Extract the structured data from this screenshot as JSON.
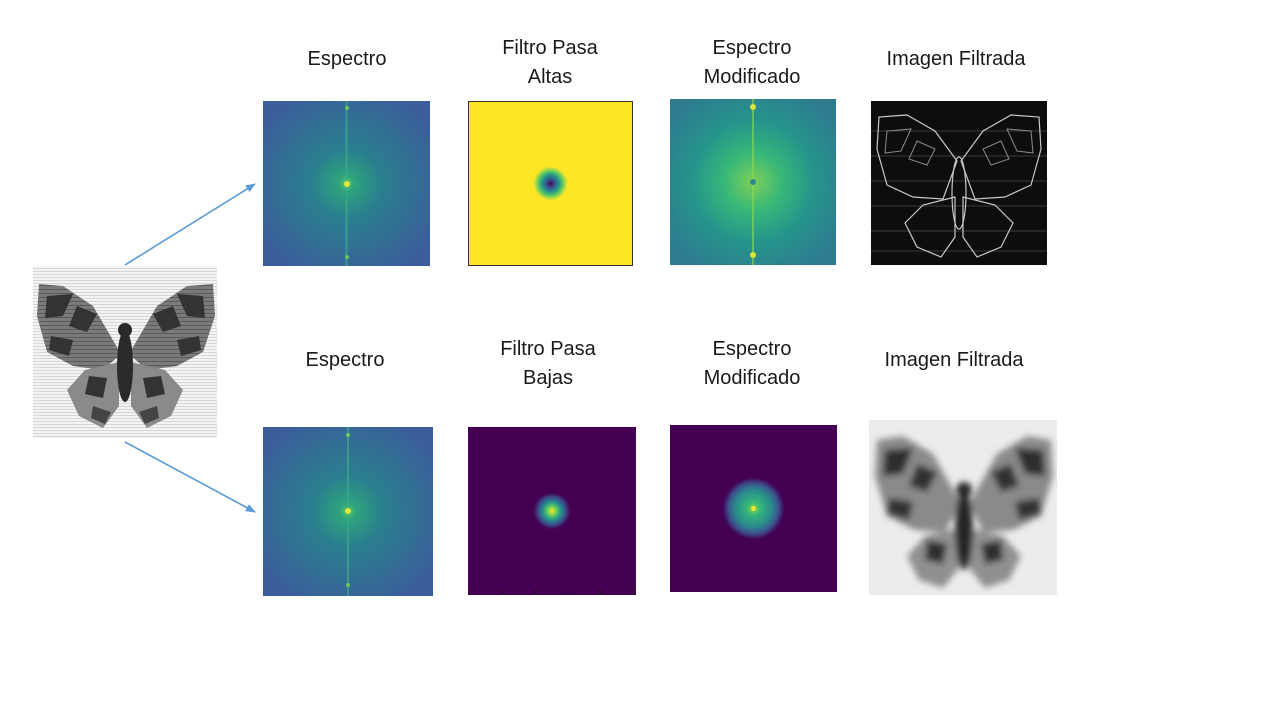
{
  "source_image": {
    "name": "butterfly-input-image"
  },
  "top_row": {
    "spectrum_label": "Espectro",
    "filter_label": "Filtro Pasa\nAltas",
    "modified_label": "Espectro\nModificado",
    "result_label": "Imagen Filtrada"
  },
  "bottom_row": {
    "spectrum_label": "Espectro",
    "filter_label": "Filtro Pasa\nBajas",
    "modified_label": "Espectro\nModificado",
    "result_label": "Imagen Filtrada"
  },
  "colors": {
    "arrow": "#5b9bd5",
    "viridis_dark": "#440154",
    "viridis_blue": "#3b528b",
    "viridis_teal": "#21918c",
    "viridis_green": "#5ec962",
    "viridis_yellow": "#fde725"
  }
}
